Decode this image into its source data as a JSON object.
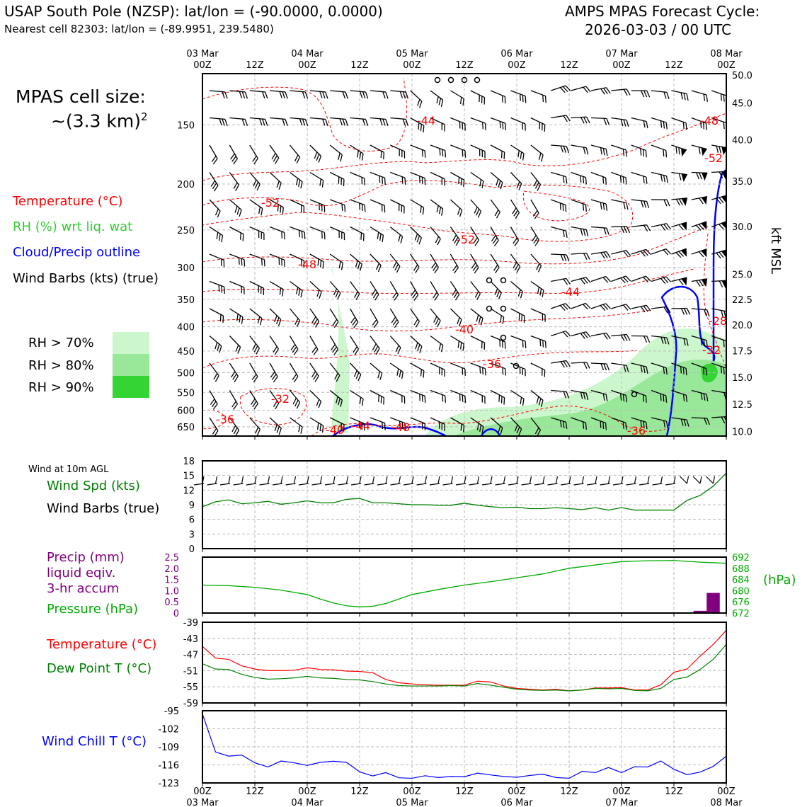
{
  "header": {
    "station": "USAP South Pole (NZSP): lat/lon = (-90.0000, 0.0000)",
    "nearest_cell": "Nearest cell 82303: lat/lon = (-89.9951, 239.5480)",
    "cycle_title": "AMPS MPAS Forecast Cycle:",
    "cycle_time": "2026-03-03 / 00 UTC"
  },
  "cell_size": {
    "label": "MPAS cell size:",
    "value": "~(3.3 km)",
    "exp": "2"
  },
  "legend_main": {
    "temperature": "Temperature (°C)",
    "rh": "RH (%) wrt liq. wat",
    "cloud": "Cloud/Precip outline",
    "barbs": "Wind Barbs (kts) (true)"
  },
  "rh_legend": [
    {
      "label": "RH > 70%",
      "color": "#ccf7cc"
    },
    {
      "label": "RH > 80%",
      "color": "#99e899"
    },
    {
      "label": "RH > 90%",
      "color": "#33d433"
    }
  ],
  "colors": {
    "temperature": "#ff0000",
    "rh": "#33cc33",
    "cloud": "#0000ff",
    "wind_spd": "#008000",
    "precip": "#800080",
    "pressure": "#00aa00",
    "dewpoint": "#008000",
    "windchill": "#0000ff"
  },
  "time_axis": {
    "top_dates": [
      "03 Mar",
      "",
      "04 Mar",
      "",
      "05 Mar",
      "",
      "06 Mar",
      "",
      "07 Mar",
      "",
      "08 Mar"
    ],
    "hours": [
      "00Z",
      "12Z",
      "00Z",
      "12Z",
      "00Z",
      "12Z",
      "00Z",
      "12Z",
      "00Z",
      "12Z",
      "00Z"
    ],
    "bottom_dates": [
      "03 Mar",
      "",
      "04 Mar",
      "",
      "05 Mar",
      "",
      "06 Mar",
      "",
      "07 Mar",
      "",
      "08 Mar"
    ]
  },
  "chart_data": [
    {
      "type": "heatmap",
      "name": "cross-section",
      "x_range_hours": [
        0,
        120
      ],
      "y_left_hPa_ticks": [
        "150",
        "200",
        "250",
        "300",
        "350",
        "400",
        "450",
        "500",
        "550",
        "600",
        "650"
      ],
      "y_right_label": "kft MSL",
      "y_right_ticks": [
        "50.0",
        "45.0",
        "40.0",
        "35.0",
        "30.0",
        "25.0",
        "22.5",
        "20.0",
        "17.5",
        "15.0",
        "12.5",
        "10.0"
      ],
      "temperature_contour_labels": [
        "-44",
        "-48",
        "-52",
        "-52",
        "-52",
        "-48",
        "-44",
        "-40",
        "-36",
        "-32",
        "-36",
        "-40",
        "-44",
        "-48",
        "-36",
        "-28",
        "-32"
      ]
    },
    {
      "type": "line",
      "name": "10m wind",
      "title": "Wind at 10m AGL",
      "labels": [
        "Wind Spd (kts)",
        "Wind Barbs (true)"
      ],
      "y_ticks": [
        "0",
        "3",
        "6",
        "9",
        "12",
        "15",
        "18"
      ],
      "ylim": [
        0,
        18
      ],
      "x": [
        0,
        3,
        6,
        9,
        12,
        15,
        18,
        21,
        24,
        27,
        30,
        33,
        36,
        39,
        42,
        45,
        48,
        51,
        54,
        57,
        60,
        63,
        66,
        69,
        72,
        75,
        78,
        81,
        84,
        87,
        90,
        93,
        96,
        99,
        102,
        105,
        108,
        111,
        114,
        117,
        120
      ],
      "values": [
        8.6,
        9.6,
        10.0,
        9.2,
        9.4,
        9.7,
        9.1,
        9.4,
        9.8,
        9.4,
        9.4,
        10.1,
        10.3,
        9.4,
        9.4,
        9.2,
        9.0,
        9.0,
        8.9,
        8.9,
        9.3,
        8.9,
        8.6,
        8.4,
        8.5,
        8.2,
        8.2,
        8.4,
        8.2,
        8.0,
        8.4,
        7.9,
        8.4,
        7.9,
        7.9,
        7.9,
        7.9,
        9.9,
        10.9,
        12.8,
        15.5
      ]
    },
    {
      "type": "bar",
      "name": "precip and pressure",
      "labels": [
        "Precip (mm)",
        "liquid eqiv.",
        "3-hr accum",
        "Pressure (hPa)"
      ],
      "y_left_ticks": [
        "0",
        "0.5",
        "1.0",
        "1.5",
        "2.0",
        "2.5"
      ],
      "ylim_precip": [
        0,
        2.5
      ],
      "y_right_ticks": [
        "672",
        "676",
        "680",
        "684",
        "688",
        "692"
      ],
      "y_right_label": "(hPa)",
      "ylim_pressure": [
        672,
        692
      ],
      "precip": {
        "x": [
          114,
          117
        ],
        "values": [
          0.1,
          0.9
        ]
      },
      "pressure": {
        "x": [
          0,
          6,
          12,
          18,
          24,
          27,
          30,
          33,
          36,
          39,
          42,
          48,
          54,
          60,
          66,
          72,
          78,
          84,
          90,
          96,
          102,
          108,
          114,
          120
        ],
        "values": [
          682.0,
          681.8,
          681.2,
          680.2,
          678.6,
          677.0,
          675.6,
          674.6,
          674.2,
          674.4,
          675.4,
          678.6,
          680.4,
          682.0,
          683.2,
          684.6,
          686.0,
          688.0,
          689.2,
          690.4,
          690.7,
          690.8,
          690.2,
          689.8
        ]
      }
    },
    {
      "type": "line",
      "name": "temperature",
      "labels": [
        "Temperature (°C)",
        "Dew Point T (°C)"
      ],
      "y_ticks": [
        "-39",
        "-43",
        "-47",
        "-51",
        "-55",
        "-59"
      ],
      "ylim": [
        -59,
        -39
      ],
      "x": [
        0,
        3,
        6,
        9,
        12,
        15,
        18,
        21,
        24,
        27,
        30,
        33,
        36,
        39,
        42,
        45,
        48,
        51,
        54,
        57,
        60,
        63,
        66,
        69,
        72,
        75,
        78,
        81,
        84,
        87,
        90,
        93,
        96,
        99,
        102,
        105,
        108,
        111,
        114,
        117,
        120
      ],
      "series": [
        {
          "name": "Temperature (°C)",
          "values": [
            -45.0,
            -47.9,
            -48.2,
            -49.8,
            -50.6,
            -51.0,
            -51.0,
            -50.9,
            -50.3,
            -50.7,
            -50.8,
            -51.1,
            -51.2,
            -51.5,
            -53.2,
            -54.0,
            -54.3,
            -54.5,
            -54.6,
            -54.6,
            -54.6,
            -53.6,
            -53.8,
            -54.8,
            -55.4,
            -55.6,
            -55.8,
            -55.6,
            -56.0,
            -55.8,
            -55.3,
            -55.3,
            -55.2,
            -55.8,
            -55.8,
            -54.5,
            -51.4,
            -50.6,
            -47.4,
            -44.5,
            -41.0
          ]
        },
        {
          "name": "Dew Point T (°C)",
          "values": [
            -49.3,
            -50.6,
            -50.7,
            -51.9,
            -52.7,
            -53.1,
            -53.0,
            -52.8,
            -52.4,
            -52.8,
            -52.9,
            -53.2,
            -53.3,
            -53.7,
            -54.3,
            -54.7,
            -54.8,
            -54.8,
            -54.8,
            -54.7,
            -54.8,
            -54.2,
            -54.6,
            -55.1,
            -55.6,
            -55.8,
            -55.9,
            -55.8,
            -56.0,
            -55.8,
            -55.4,
            -55.5,
            -55.4,
            -55.9,
            -56.0,
            -55.4,
            -53.2,
            -52.6,
            -50.7,
            -48.2,
            -44.5
          ]
        }
      ]
    },
    {
      "type": "line",
      "name": "wind chill",
      "labels": [
        "Wind Chill T (°C)"
      ],
      "y_ticks": [
        "-95",
        "-102",
        "-109",
        "-116",
        "-123"
      ],
      "ylim": [
        -123,
        -95
      ],
      "x": [
        0,
        3,
        6,
        9,
        12,
        15,
        18,
        21,
        24,
        27,
        30,
        33,
        36,
        39,
        42,
        45,
        48,
        51,
        54,
        57,
        60,
        63,
        66,
        69,
        72,
        75,
        78,
        81,
        84,
        87,
        90,
        93,
        96,
        99,
        102,
        105,
        108,
        111,
        114,
        117,
        120
      ],
      "values": [
        -96.3,
        -111.0,
        -112.6,
        -112.2,
        -115.2,
        -116.8,
        -114.5,
        -115.2,
        -116.2,
        -115.0,
        -114.6,
        -115.0,
        -118.7,
        -120.3,
        -119.0,
        -121.0,
        -121.2,
        -120.2,
        -120.9,
        -120.5,
        -120.6,
        -119.2,
        -119.9,
        -120.5,
        -120.8,
        -120.1,
        -119.6,
        -120.9,
        -121.2,
        -118.5,
        -119.0,
        -117.0,
        -119.0,
        -116.7,
        -116.8,
        -114.5,
        -117.7,
        -119.8,
        -118.8,
        -116.6,
        -112.6
      ]
    }
  ]
}
